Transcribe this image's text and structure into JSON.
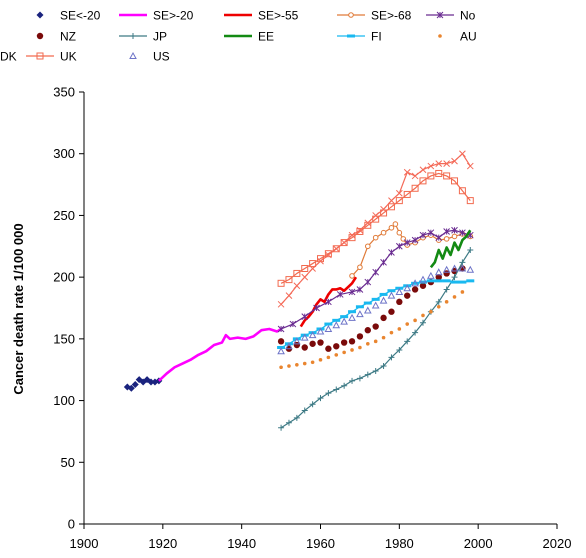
{
  "chart_data": {
    "type": "line",
    "title": "",
    "xlabel": "",
    "ylabel": "Cancer death rate 1/100 000",
    "xlim": [
      1900,
      2020
    ],
    "ylim": [
      0,
      350
    ],
    "xticks": [
      1900,
      1920,
      1940,
      1960,
      1980,
      2000,
      2020
    ],
    "yticks": [
      0,
      50,
      100,
      150,
      200,
      250,
      300,
      350
    ],
    "grid": false,
    "legend_position": "top",
    "series": [
      {
        "name": "SE<-20",
        "color": "#1a237e",
        "style": "markers",
        "marker": "diamond",
        "x": [
          1911,
          1912,
          1913,
          1914,
          1915,
          1916,
          1917,
          1918,
          1919
        ],
        "y": [
          111,
          110,
          113,
          117,
          115,
          117,
          115,
          115,
          116
        ]
      },
      {
        "name": "SE>-20",
        "color": "#ff00ff",
        "style": "line",
        "x": [
          1919,
          1921,
          1923,
          1925,
          1927,
          1929,
          1931,
          1933,
          1935,
          1936,
          1937,
          1939,
          1941,
          1943,
          1945,
          1947,
          1949,
          1950
        ],
        "y": [
          116,
          122,
          127,
          130,
          133,
          137,
          140,
          145,
          147,
          153,
          150,
          151,
          150,
          152,
          157,
          158,
          156,
          158
        ]
      },
      {
        "name": "SE>-55",
        "color": "#ee0000",
        "style": "line",
        "x": [
          1955,
          1956,
          1957,
          1958,
          1959,
          1960,
          1961,
          1962,
          1963,
          1964,
          1965,
          1966,
          1967,
          1968,
          1969
        ],
        "y": [
          160,
          165,
          168,
          172,
          178,
          182,
          180,
          186,
          190,
          190,
          191,
          189,
          192,
          195,
          200
        ]
      },
      {
        "name": "SE>-68",
        "color": "#e07b39",
        "style": "line-marker",
        "marker": "circle-o",
        "x": [
          1968,
          1970,
          1972,
          1974,
          1976,
          1978,
          1979,
          1980,
          1981,
          1982,
          1984,
          1986,
          1988,
          1990,
          1992,
          1994,
          1996,
          1998
        ],
        "y": [
          201,
          208,
          225,
          232,
          236,
          240,
          243,
          236,
          231,
          226,
          228,
          232,
          234,
          230,
          231,
          233,
          235,
          233
        ]
      },
      {
        "name": "No",
        "color": "#6a2c91",
        "style": "line-marker",
        "marker": "star",
        "x": [
          1950,
          1953,
          1956,
          1959,
          1962,
          1965,
          1968,
          1970,
          1972,
          1974,
          1976,
          1978,
          1980,
          1982,
          1984,
          1986,
          1988,
          1990,
          1992,
          1994,
          1996,
          1998
        ],
        "y": [
          158,
          162,
          168,
          175,
          180,
          186,
          188,
          190,
          196,
          204,
          212,
          220,
          225,
          228,
          230,
          234,
          236,
          232,
          237,
          238,
          236,
          234
        ]
      },
      {
        "name": "NZ",
        "color": "#7a0a0a",
        "style": "markers",
        "marker": "circle",
        "x": [
          1950,
          1952,
          1954,
          1956,
          1958,
          1960,
          1962,
          1964,
          1966,
          1968,
          1970,
          1972,
          1974,
          1976,
          1978,
          1980,
          1982,
          1984,
          1986,
          1988,
          1990,
          1992,
          1994,
          1996
        ],
        "y": [
          148,
          142,
          145,
          143,
          146,
          147,
          142,
          144,
          147,
          148,
          152,
          157,
          160,
          167,
          172,
          180,
          185,
          190,
          193,
          196,
          200,
          203,
          205,
          207
        ]
      },
      {
        "name": "JP",
        "color": "#3d7a85",
        "style": "line-marker",
        "marker": "plus",
        "x": [
          1950,
          1952,
          1954,
          1956,
          1958,
          1960,
          1962,
          1964,
          1966,
          1968,
          1970,
          1972,
          1974,
          1976,
          1978,
          1980,
          1982,
          1984,
          1986,
          1988,
          1990,
          1992,
          1994,
          1996,
          1998
        ],
        "y": [
          78,
          82,
          86,
          92,
          97,
          102,
          106,
          109,
          112,
          116,
          118,
          121,
          124,
          128,
          135,
          141,
          148,
          155,
          163,
          172,
          180,
          190,
          200,
          212,
          222
        ]
      },
      {
        "name": "EE",
        "color": "#138a13",
        "style": "line",
        "x": [
          1988,
          1989,
          1990,
          1991,
          1992,
          1993,
          1994,
          1995,
          1996,
          1997,
          1998
        ],
        "y": [
          208,
          212,
          222,
          215,
          224,
          218,
          228,
          222,
          230,
          233,
          238
        ]
      },
      {
        "name": "FI",
        "color": "#19b9f0",
        "style": "line-marker",
        "marker": "dash",
        "x": [
          1950,
          1952,
          1954,
          1956,
          1958,
          1960,
          1962,
          1964,
          1966,
          1968,
          1970,
          1972,
          1974,
          1976,
          1978,
          1980,
          1982,
          1984,
          1986,
          1988,
          1990,
          1992,
          1994,
          1996,
          1998
        ],
        "y": [
          143,
          146,
          150,
          153,
          155,
          158,
          162,
          165,
          168,
          172,
          176,
          179,
          182,
          186,
          189,
          191,
          193,
          195,
          196,
          197,
          197,
          197,
          196,
          196,
          197
        ]
      },
      {
        "name": "AU",
        "color": "#e9852f",
        "style": "markers",
        "marker": "dot",
        "x": [
          1950,
          1952,
          1954,
          1956,
          1958,
          1960,
          1962,
          1964,
          1966,
          1968,
          1970,
          1972,
          1974,
          1976,
          1978,
          1980,
          1982,
          1984,
          1986,
          1988,
          1990,
          1992,
          1994,
          1996
        ],
        "y": [
          127,
          128,
          129,
          130,
          131,
          133,
          135,
          137,
          139,
          141,
          143,
          146,
          148,
          151,
          155,
          158,
          162,
          165,
          169,
          172,
          176,
          180,
          184,
          188
        ]
      },
      {
        "name": "UK",
        "color": "#f26a4f",
        "style": "line-marker",
        "marker": "square-o",
        "x": [
          1950,
          1952,
          1954,
          1956,
          1958,
          1960,
          1962,
          1964,
          1966,
          1968,
          1970,
          1972,
          1974,
          1976,
          1978,
          1980,
          1982,
          1984,
          1986,
          1988,
          1990,
          1992,
          1994,
          1996,
          1998
        ],
        "y": [
          195,
          198,
          203,
          207,
          211,
          215,
          219,
          223,
          228,
          232,
          237,
          242,
          247,
          252,
          257,
          262,
          267,
          272,
          278,
          282,
          284,
          282,
          278,
          270,
          262
        ]
      },
      {
        "name": "US",
        "color": "#6e74c8",
        "style": "markers",
        "marker": "triangle-o",
        "x": [
          1950,
          1952,
          1954,
          1956,
          1958,
          1960,
          1962,
          1964,
          1966,
          1968,
          1970,
          1972,
          1974,
          1976,
          1978,
          1980,
          1982,
          1984,
          1986,
          1988,
          1990,
          1992,
          1994,
          1996,
          1998
        ],
        "y": [
          140,
          144,
          148,
          151,
          153,
          156,
          158,
          161,
          164,
          167,
          170,
          173,
          177,
          181,
          185,
          188,
          191,
          195,
          198,
          201,
          204,
          206,
          207,
          207,
          206
        ]
      },
      {
        "name": "DK",
        "color": "#f46a58",
        "style": "line-marker",
        "marker": "x",
        "x": [
          1950,
          1952,
          1954,
          1956,
          1958,
          1960,
          1962,
          1964,
          1966,
          1968,
          1970,
          1972,
          1974,
          1976,
          1978,
          1980,
          1982,
          1984,
          1986,
          1988,
          1990,
          1992,
          1994,
          1996,
          1998
        ],
        "y": [
          178,
          185,
          193,
          200,
          207,
          213,
          218,
          223,
          228,
          234,
          238,
          244,
          250,
          255,
          262,
          268,
          285,
          282,
          287,
          290,
          292,
          292,
          294,
          300,
          290
        ]
      }
    ]
  }
}
